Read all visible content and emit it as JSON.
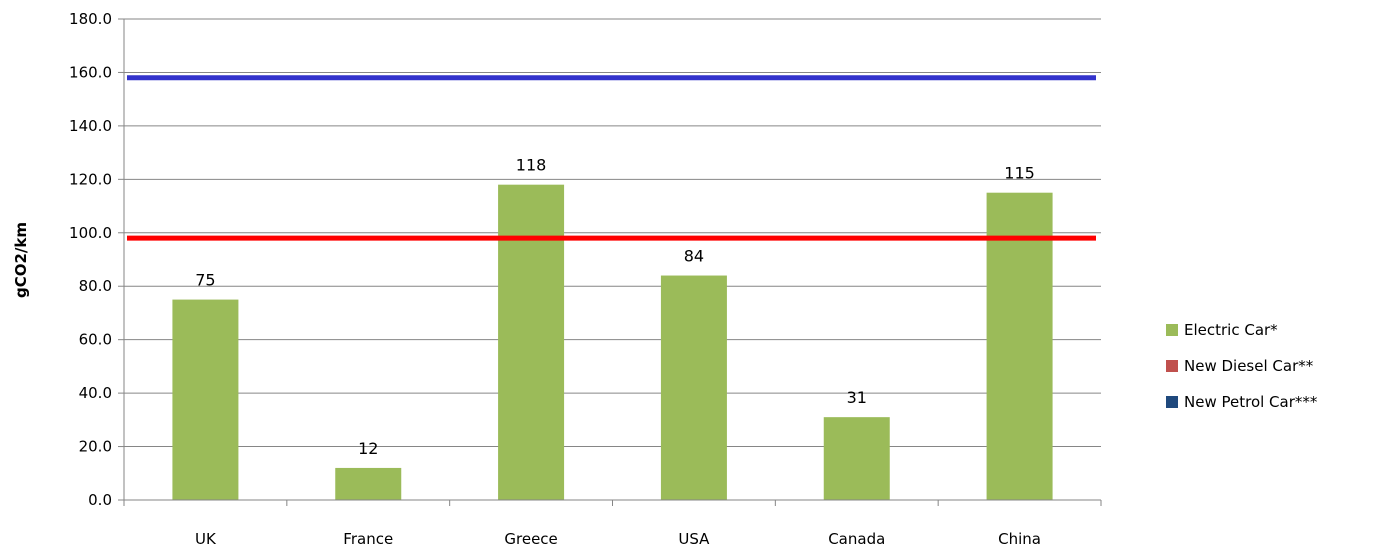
{
  "chart_data": {
    "type": "bar",
    "ylabel": "gCO2/km",
    "categories": [
      "UK",
      "France",
      "Greece",
      "USA",
      "Canada",
      "China"
    ],
    "ylim": [
      0,
      180
    ],
    "yticks": [
      "0.0",
      "20.0",
      "40.0",
      "60.0",
      "80.0",
      "100.0",
      "120.0",
      "140.0",
      "160.0",
      "180.0"
    ],
    "grid": true,
    "legend_position": "right",
    "series": [
      {
        "name": "Electric Car*",
        "type": "bar",
        "color": "#9BBB59",
        "values": [
          75,
          12,
          118,
          84,
          31,
          115
        ],
        "labels": [
          "75",
          "12",
          "118",
          "84",
          "31",
          "115"
        ]
      },
      {
        "name": "New Diesel Car**",
        "type": "line",
        "color": "#FF0000",
        "legend_color": "#C0504D",
        "value": 98
      },
      {
        "name": "New Petrol Car***",
        "type": "line",
        "color": "#3333CC",
        "legend_color": "#1F497D",
        "value": 158
      }
    ]
  }
}
